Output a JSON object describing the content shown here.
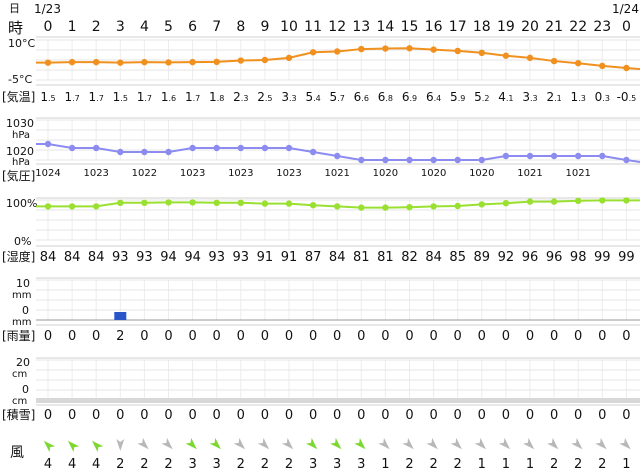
{
  "labels": {
    "day": "日",
    "hour": "時",
    "date_start": "1/23",
    "date_end": "1/24",
    "temp_top": "10°C",
    "temp_bottom": "-5°C",
    "temp_row": "[気温]",
    "press_top_val": "1030",
    "press_top_unit": "hPa",
    "press_bottom_val": "1020",
    "press_bottom_unit": "hPa",
    "press_row": "[気圧]",
    "hum_top": "100%",
    "hum_bottom": "0%",
    "hum_row": "[湿度]",
    "rain_top": "10",
    "rain_top_unit": "mm",
    "rain_bottom": "0",
    "rain_bottom_unit": "mm",
    "rain_row": "[雨量]",
    "snow_top": "20",
    "snow_top_unit": "cm",
    "snow_bottom": "0",
    "snow_bottom_unit": "cm",
    "snow_row": "[積雪]",
    "wind_row": "風"
  },
  "chart_data": {
    "type": "line",
    "hours": [
      "0",
      "1",
      "2",
      "3",
      "4",
      "5",
      "6",
      "7",
      "8",
      "9",
      "10",
      "11",
      "12",
      "13",
      "14",
      "15",
      "16",
      "17",
      "18",
      "19",
      "20",
      "21",
      "22",
      "23",
      "0"
    ],
    "temperature": {
      "ylim": [
        -5,
        10
      ],
      "color": "#f0901e",
      "values": [
        1.5,
        1.7,
        1.7,
        1.5,
        1.7,
        1.6,
        1.7,
        1.8,
        2.3,
        2.5,
        3.3,
        5.4,
        5.7,
        6.6,
        6.8,
        6.9,
        6.4,
        5.9,
        5.2,
        4.1,
        3.3,
        2.1,
        1.3,
        0.3,
        -0.5
      ],
      "labels": [
        "1.5",
        "1.7",
        "1.7",
        "1.5",
        "1.7",
        "1.6",
        "1.7",
        "1.8",
        "2.3",
        "2.5",
        "3.3",
        "5.4",
        "5.7",
        "6.6",
        "6.8",
        "6.9",
        "6.4",
        "5.9",
        "5.2",
        "4.1",
        "3.3",
        "2.1",
        "1.3",
        "0.3",
        "-0.5"
      ]
    },
    "pressure": {
      "ylim": [
        1020,
        1030
      ],
      "color": "#8c8cf0",
      "values": [
        1024,
        1023,
        1023,
        1022,
        1022,
        1022,
        1023,
        1023,
        1023,
        1023,
        1023,
        1022,
        1021,
        1020,
        1020,
        1020,
        1020,
        1020,
        1020,
        1021,
        1021,
        1021,
        1021,
        1021,
        1020
      ],
      "labels": [
        "1024",
        "",
        "1023",
        "",
        "1022",
        "",
        "1023",
        "",
        "1023",
        "",
        "1023",
        "",
        "1021",
        "",
        "1020",
        "",
        "1020",
        "",
        "1020",
        "",
        "1021",
        "",
        "1021",
        "",
        ""
      ]
    },
    "humidity": {
      "ylim": [
        0,
        100
      ],
      "color": "#99e030",
      "values": [
        84,
        84,
        84,
        93,
        93,
        94,
        94,
        93,
        93,
        91,
        91,
        87,
        84,
        81,
        81,
        82,
        84,
        85,
        89,
        92,
        96,
        96,
        98,
        99,
        99
      ]
    },
    "rainfall": {
      "ylim": [
        0,
        10
      ],
      "color": "#2856c8",
      "values": [
        0,
        0,
        0,
        2,
        0,
        0,
        0,
        0,
        0,
        0,
        0,
        0,
        0,
        0,
        0,
        0,
        0,
        0,
        0,
        0,
        0,
        0,
        0,
        0,
        0
      ]
    },
    "snow": {
      "ylim": [
        0,
        20
      ],
      "values": [
        0,
        0,
        0,
        0,
        0,
        0,
        0,
        0,
        0,
        0,
        0,
        0,
        0,
        0,
        0,
        0,
        0,
        0,
        0,
        0,
        0,
        0,
        0,
        0,
        0
      ]
    },
    "wind": {
      "speeds": [
        4,
        4,
        4,
        2,
        2,
        2,
        3,
        3,
        2,
        2,
        2,
        3,
        3,
        3,
        1,
        2,
        2,
        2,
        1,
        1,
        1,
        2,
        2,
        2,
        1
      ],
      "colors": [
        "#7cd830",
        "#7cd830",
        "#7cd830",
        "#b8b8b8",
        "#b8b8b8",
        "#b8b8b8",
        "#7cd830",
        "#7cd830",
        "#b8b8b8",
        "#b8b8b8",
        "#b8b8b8",
        "#7cd830",
        "#7cd830",
        "#7cd830",
        "#b8b8b8",
        "#b8b8b8",
        "#b8b8b8",
        "#b8b8b8",
        "#b8b8b8",
        "#b8b8b8",
        "#b8b8b8",
        "#b8b8b8",
        "#b8b8b8",
        "#b8b8b8",
        "#b8b8b8"
      ],
      "directions": [
        45,
        45,
        45,
        270,
        225,
        225,
        225,
        225,
        225,
        225,
        225,
        225,
        225,
        225,
        225,
        225,
        225,
        225,
        225,
        225,
        225,
        225,
        225,
        225,
        225
      ]
    }
  }
}
